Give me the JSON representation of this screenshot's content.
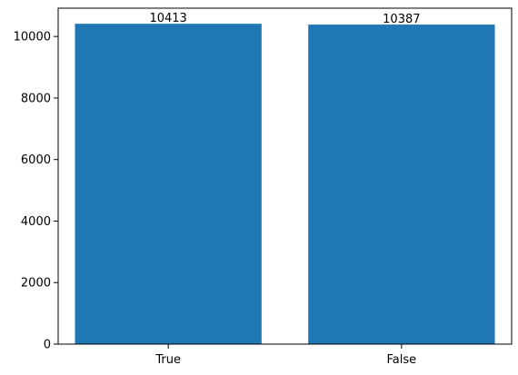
{
  "chart_data": {
    "type": "bar",
    "title": "",
    "xlabel": "",
    "ylabel": "",
    "categories": [
      "True",
      "False"
    ],
    "values": [
      10413,
      10387
    ],
    "data_labels": [
      "10413",
      "10387"
    ],
    "ylim": [
      0,
      10920
    ],
    "yticks": [
      0,
      2000,
      4000,
      6000,
      8000,
      10000
    ],
    "ytick_labels": [
      "0",
      "2000",
      "4000",
      "6000",
      "8000",
      "10000"
    ],
    "grid": false,
    "legend": "none",
    "bar_color": "#1f77b4"
  }
}
